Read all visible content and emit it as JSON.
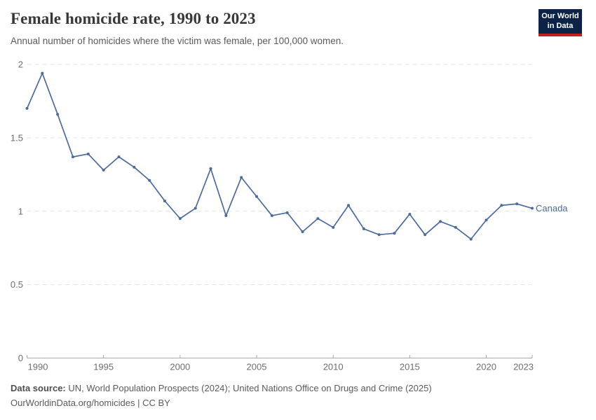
{
  "header": {
    "title": "Female homicide rate, 1990 to 2023",
    "subtitle": "Annual number of homicides where the victim was female, per 100,000 women.",
    "logo": {
      "line1": "Our World",
      "line2": "in Data",
      "bg_color": "#0a2346",
      "bar_color": "#c21f1f"
    }
  },
  "chart_data": {
    "type": "line",
    "title": "Female homicide rate, 1990 to 2023",
    "subtitle": "Annual number of homicides where the victim was female, per 100,000 women.",
    "x": [
      1990,
      1991,
      1992,
      1993,
      1994,
      1995,
      1996,
      1997,
      1998,
      1999,
      2000,
      2001,
      2002,
      2003,
      2004,
      2005,
      2006,
      2007,
      2008,
      2009,
      2010,
      2011,
      2012,
      2013,
      2014,
      2015,
      2016,
      2017,
      2018,
      2019,
      2020,
      2021,
      2022,
      2023
    ],
    "series": [
      {
        "name": "Canada",
        "color": "#4c6a9c",
        "values": [
          1.7,
          1.94,
          1.66,
          1.37,
          1.39,
          1.28,
          1.37,
          1.3,
          1.21,
          1.07,
          0.95,
          1.02,
          1.29,
          0.97,
          1.23,
          1.1,
          0.97,
          0.99,
          0.86,
          0.95,
          0.89,
          1.04,
          0.88,
          0.84,
          0.85,
          0.98,
          0.84,
          0.93,
          0.89,
          0.81,
          0.94,
          1.04,
          1.05,
          1.02
        ]
      }
    ],
    "xlabel": "",
    "ylabel": "",
    "ylim": [
      0,
      2
    ],
    "yticks": [
      0,
      0.5,
      1,
      1.5,
      2
    ],
    "xticks": [
      1990,
      1995,
      2000,
      2005,
      2010,
      2015,
      2020,
      2023
    ],
    "grid": "horizontal-dashed",
    "legend_position": "end-of-line-label",
    "end_label": "Canada"
  },
  "footer": {
    "source_label": "Data source:",
    "source_text": " UN, World Population Prospects (2024); United Nations Office on Drugs and Crime (2025)",
    "url": "OurWorldinData.org/homicides",
    "separator": " | ",
    "license": "CC BY"
  },
  "colors": {
    "accent_line": "#4c6a9c",
    "logo_navy": "#0a2346",
    "logo_red": "#c21f1f",
    "gridline": "#e4e4e4",
    "axis": "#a9a9a9",
    "tick_text": "#6e6e6e",
    "footer_text": "#5b5b5b"
  }
}
